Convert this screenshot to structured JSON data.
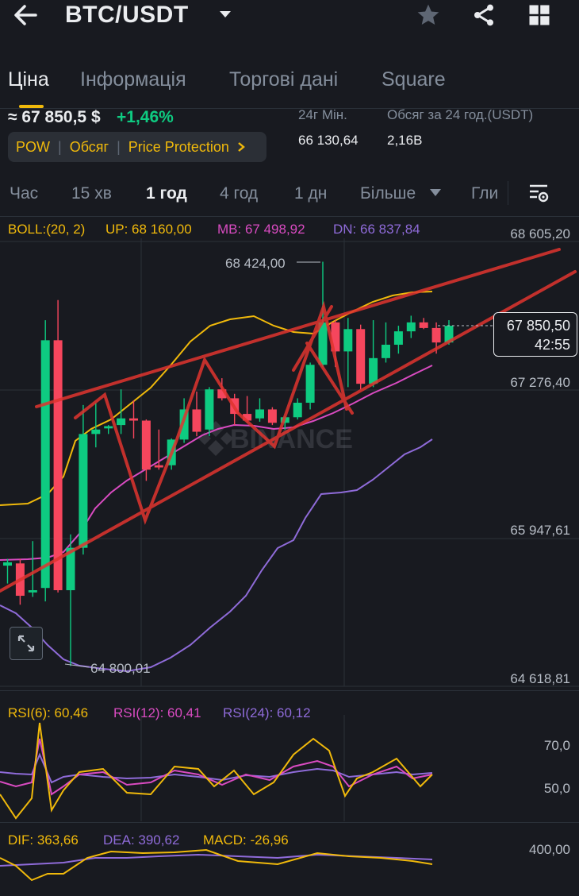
{
  "header": {
    "title": "BTC/USDT",
    "back_icon": "arrow-left-icon",
    "dropdown_icon": "caret-down-icon",
    "favorite_icon": "star-icon",
    "share_icon": "share-icon",
    "grid_icon": "grid-icon"
  },
  "tabs": [
    {
      "label": "Ціна",
      "active": true
    },
    {
      "label": "Інформація",
      "active": false
    },
    {
      "label": "Торгові дані",
      "active": false
    },
    {
      "label": "Square",
      "active": false
    }
  ],
  "price": {
    "approx": "≈ 67 850,5 $",
    "change": "+1,46%",
    "low_label": "24г Мін.",
    "low_value": "66 130,64",
    "vol_label": "Обсяг за 24 год.(USDT)",
    "vol_value": "2,16B"
  },
  "chips": {
    "pow": "POW",
    "obsyag": "Обсяг",
    "protection": "Price Protection",
    "chevron_icon": "chevron-right-icon"
  },
  "timeframes": [
    {
      "label": "Час",
      "active": false
    },
    {
      "label": "15 хв",
      "active": false
    },
    {
      "label": "1 год",
      "active": true
    },
    {
      "label": "4 год",
      "active": false
    },
    {
      "label": "1 дн",
      "active": false
    },
    {
      "label": "Більше",
      "active": false
    },
    {
      "label": "Гли",
      "active": false
    }
  ],
  "settings_icon": "chart-settings-icon",
  "boll": {
    "label": "BOLL:(20, 2)",
    "up": "UP: 68 160,00",
    "mb": "MB: 67 498,92",
    "dn": "DN: 66 837,84"
  },
  "price_axis": {
    "top": "68 605,20",
    "mid1": "67 276,40",
    "mid2": "65 947,61",
    "bottom": "64 618,81"
  },
  "annotations": {
    "high": "68 424,00",
    "low": "64 800,01"
  },
  "current_price": {
    "value": "67 850,50",
    "countdown": "42:55"
  },
  "watermark": "BINANCE",
  "rsi": {
    "r6": "RSI(6): 60,46",
    "r12": "RSI(12): 60,41",
    "r24": "RSI(24): 60,12",
    "axis_70": "70,0",
    "axis_50": "50,0"
  },
  "macd": {
    "dif": "DIF: 363,66",
    "dea": "DEA: 390,62",
    "macd": "MACD: -26,96",
    "axis": "400,00"
  },
  "colors": {
    "bg": "#181a20",
    "up": "#0ecb81",
    "down": "#f6465d",
    "accent": "#f0b90b",
    "boll_up": "#f0b90b",
    "boll_mb": "#d94bc1",
    "boll_dn": "#8f6bd9",
    "drawing": "#e0342f"
  },
  "chart_data": {
    "type": "candlestick",
    "price_scale": [
      64618.81,
      68605.2
    ],
    "candles": [
      {
        "o": 65700,
        "h": 65760,
        "l": 65540,
        "c": 65730
      },
      {
        "o": 65720,
        "h": 65760,
        "l": 65350,
        "c": 65430
      },
      {
        "o": 65460,
        "h": 65920,
        "l": 65420,
        "c": 65480
      },
      {
        "o": 65500,
        "h": 67900,
        "l": 65380,
        "c": 67720
      },
      {
        "o": 67720,
        "h": 68080,
        "l": 65460,
        "c": 65480
      },
      {
        "o": 65480,
        "h": 65980,
        "l": 64800,
        "c": 65860
      },
      {
        "o": 65860,
        "h": 67140,
        "l": 65800,
        "c": 66880
      },
      {
        "o": 66880,
        "h": 67160,
        "l": 66760,
        "c": 66920
      },
      {
        "o": 66930,
        "h": 66960,
        "l": 66880,
        "c": 66950
      },
      {
        "o": 66960,
        "h": 67280,
        "l": 66880,
        "c": 67020
      },
      {
        "o": 67020,
        "h": 67180,
        "l": 66840,
        "c": 67000
      },
      {
        "o": 67000,
        "h": 67010,
        "l": 66460,
        "c": 66560
      },
      {
        "o": 66600,
        "h": 66920,
        "l": 66560,
        "c": 66580
      },
      {
        "o": 66600,
        "h": 66840,
        "l": 66560,
        "c": 66830
      },
      {
        "o": 66830,
        "h": 67200,
        "l": 66800,
        "c": 67100
      },
      {
        "o": 67100,
        "h": 67260,
        "l": 66860,
        "c": 66900
      },
      {
        "o": 66920,
        "h": 67300,
        "l": 66860,
        "c": 67280
      },
      {
        "o": 67280,
        "h": 67380,
        "l": 67180,
        "c": 67200
      },
      {
        "o": 67200,
        "h": 67240,
        "l": 66960,
        "c": 67060
      },
      {
        "o": 67060,
        "h": 67220,
        "l": 66980,
        "c": 67000
      },
      {
        "o": 67020,
        "h": 67200,
        "l": 66990,
        "c": 67100
      },
      {
        "o": 67100,
        "h": 67120,
        "l": 66960,
        "c": 66980
      },
      {
        "o": 66980,
        "h": 67040,
        "l": 66920,
        "c": 67030
      },
      {
        "o": 67030,
        "h": 67200,
        "l": 67010,
        "c": 67160
      },
      {
        "o": 67160,
        "h": 67520,
        "l": 67100,
        "c": 67500
      },
      {
        "o": 67500,
        "h": 68424,
        "l": 67480,
        "c": 67880
      },
      {
        "o": 67880,
        "h": 67900,
        "l": 67480,
        "c": 67620
      },
      {
        "o": 67620,
        "h": 67920,
        "l": 67300,
        "c": 67820
      },
      {
        "o": 67820,
        "h": 67860,
        "l": 67280,
        "c": 67330
      },
      {
        "o": 67330,
        "h": 67900,
        "l": 67300,
        "c": 67560
      },
      {
        "o": 67560,
        "h": 67880,
        "l": 67520,
        "c": 67680
      },
      {
        "o": 67680,
        "h": 67850,
        "l": 67600,
        "c": 67800
      },
      {
        "o": 67800,
        "h": 67940,
        "l": 67740,
        "c": 67880
      },
      {
        "o": 67880,
        "h": 67920,
        "l": 67820,
        "c": 67830
      },
      {
        "o": 67830,
        "h": 67880,
        "l": 67600,
        "c": 67700
      },
      {
        "o": 67700,
        "h": 67900,
        "l": 67680,
        "c": 67850
      }
    ]
  }
}
